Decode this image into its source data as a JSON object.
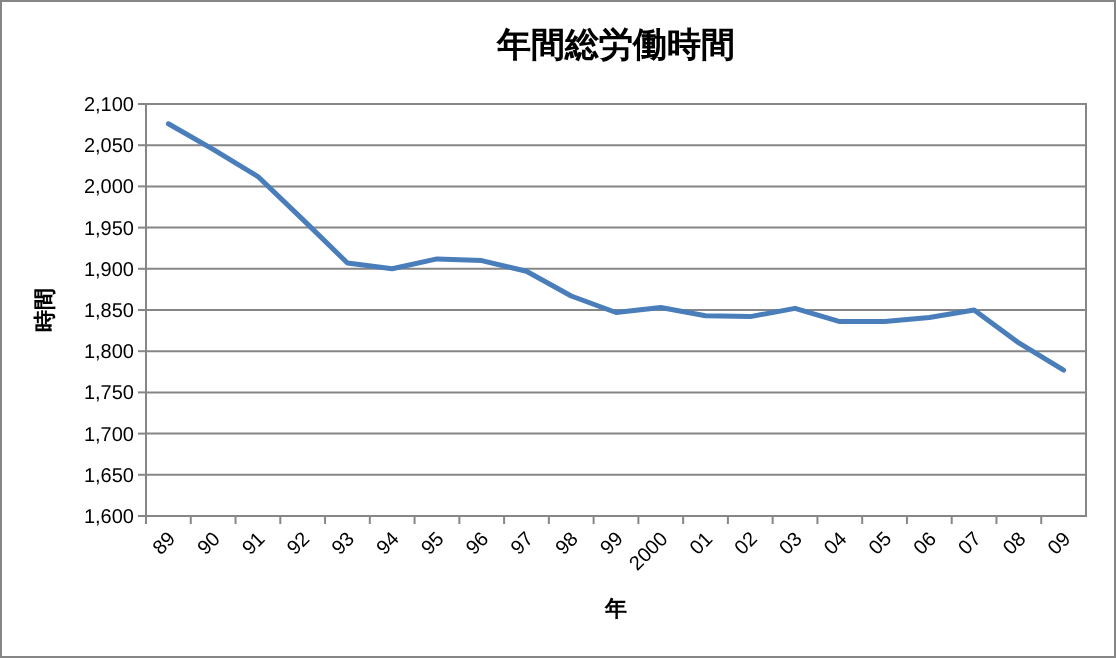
{
  "chart_data": {
    "type": "line",
    "title": "年間総労働時間",
    "xlabel": "年",
    "ylabel": "時間",
    "categories": [
      "89",
      "90",
      "91",
      "92",
      "93",
      "94",
      "95",
      "96",
      "97",
      "98",
      "99",
      "2000",
      "01",
      "02",
      "03",
      "04",
      "05",
      "06",
      "07",
      "08",
      "09"
    ],
    "series": [
      {
        "color": "#4a7ebb",
        "values": [
          2076,
          2045,
          2012,
          1960,
          1907,
          1900,
          1912,
          1910,
          1897,
          1867,
          1847,
          1853,
          1843,
          1842,
          1852,
          1836,
          1836,
          1841,
          1850,
          1810,
          1777
        ]
      }
    ],
    "ylim": [
      1600,
      2100
    ],
    "yticks": [
      {
        "value": 1600,
        "label": "1,600"
      },
      {
        "value": 1650,
        "label": "1,650"
      },
      {
        "value": 1700,
        "label": "1,700"
      },
      {
        "value": 1750,
        "label": "1,750"
      },
      {
        "value": 1800,
        "label": "1,800"
      },
      {
        "value": 1850,
        "label": "1,850"
      },
      {
        "value": 1900,
        "label": "1,900"
      },
      {
        "value": 1950,
        "label": "1,950"
      },
      {
        "value": 2000,
        "label": "2,000"
      },
      {
        "value": 2050,
        "label": "2,050"
      },
      {
        "value": 2100,
        "label": "2,100"
      }
    ],
    "grid": "y",
    "marker": "none",
    "line_style": "solid"
  }
}
